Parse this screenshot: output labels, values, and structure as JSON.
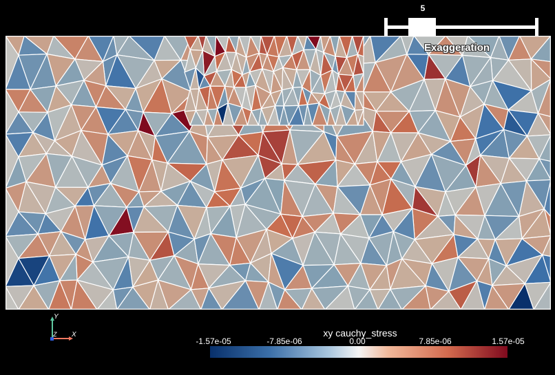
{
  "view": {
    "background": "#000000",
    "mesh_edge_color": "#ffffff"
  },
  "exaggeration_slider": {
    "value": "5",
    "label": "Exaggeration"
  },
  "orientation_axes": {
    "x_label": "X",
    "y_label": "Y",
    "z_label": "Z",
    "x_color": "#f07860",
    "y_color": "#5fc8a0",
    "z_color": "#3060e0"
  },
  "colorbar": {
    "title": "xy cauchy_stress",
    "ticks": [
      "-1.57e-05",
      "-7.85e-06",
      "0.00",
      "7.85e-06",
      "1.57e-05"
    ],
    "colormap": "diverging cool-to-warm",
    "color_min": "#08306b",
    "color_mid": "#f4f4f4",
    "color_max": "#7f0a1e"
  }
}
